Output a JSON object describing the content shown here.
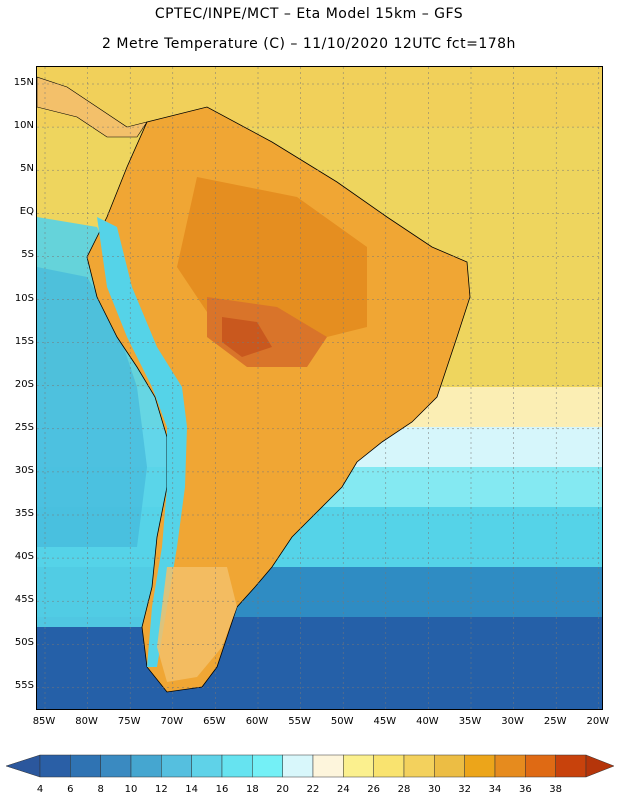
{
  "header": {
    "line1": "CPTEC/INPE/MCT –  Eta Model 15km – GFS",
    "line2": "2 Metre Temperature (C) – 11/10/2020 12UTC fct=178h"
  },
  "map": {
    "lat_labels": [
      "15N",
      "10N",
      "5N",
      "EQ",
      "5S",
      "10S",
      "15S",
      "20S",
      "25S",
      "30S",
      "35S",
      "40S",
      "45S",
      "50S",
      "55S"
    ],
    "lon_labels": [
      "85W",
      "80W",
      "75W",
      "70W",
      "65W",
      "60W",
      "55W",
      "50W",
      "45W",
      "40W",
      "35W",
      "30W",
      "25W",
      "20W"
    ],
    "ocean_colors": [
      "#f1d05a",
      "#eed55e",
      "#fbeeb4",
      "#d6f6fb",
      "#84e9f2",
      "#55d3e8",
      "#2f8cc3",
      "#2560a8"
    ],
    "land_colors": [
      "#f0a634",
      "#e58e20",
      "#d9742a",
      "#c9581e",
      "#f3c06a",
      "#55d3e8"
    ]
  },
  "colorbar": {
    "labels": [
      "4",
      "6",
      "8",
      "10",
      "12",
      "14",
      "16",
      "18",
      "20",
      "22",
      "24",
      "26",
      "28",
      "30",
      "32",
      "34",
      "36",
      "38"
    ],
    "colors": [
      "#2a5fa6",
      "#2f73b3",
      "#3a8ac1",
      "#45a6d0",
      "#55bfdf",
      "#5fd2e8",
      "#66e3f0",
      "#74f0f6",
      "#d8f7fb",
      "#fdf5dc",
      "#fbf08e",
      "#f9e36f",
      "#f3d15d",
      "#ecbd44",
      "#eca51a",
      "#e68b1e",
      "#df6a14",
      "#c8420c"
    ],
    "under_color": "#2b579d",
    "over_color": "#b5350a"
  }
}
